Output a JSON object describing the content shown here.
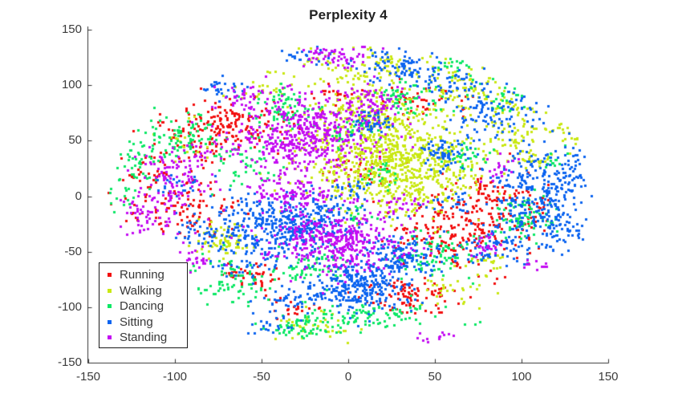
{
  "colors": {
    "background": "#ffffff",
    "axis": "#333333",
    "title_text": "#212121",
    "tick_text": "#3b3b3b",
    "legend_border": "#1a1a1a"
  },
  "chart_data": {
    "type": "scatter",
    "title": "Perplexity 4",
    "xlabel": "",
    "ylabel": "",
    "xlim": [
      -150,
      150
    ],
    "ylim": [
      -150,
      150
    ],
    "x_ticks": [
      -150,
      -100,
      -50,
      0,
      50,
      100,
      150
    ],
    "y_ticks": [
      -150,
      -100,
      -50,
      0,
      50,
      100,
      150
    ],
    "grid": false,
    "box": false,
    "legend_position": "bottom-left-inside",
    "marker": "dot",
    "marker_px": 3,
    "series": [
      {
        "name": "Running",
        "color": "#F20F0F",
        "clusters": [
          [
            -67,
            66,
            15,
            11,
            150
          ],
          [
            -90,
            45,
            16,
            13,
            60
          ],
          [
            -95,
            -12,
            19,
            12,
            100
          ],
          [
            -58,
            -72,
            9,
            7,
            45
          ],
          [
            5,
            25,
            13,
            9,
            35
          ],
          [
            -5,
            93,
            8,
            6,
            18
          ],
          [
            45,
            85,
            13,
            8,
            45
          ],
          [
            63,
            -30,
            19,
            18,
            230
          ],
          [
            38,
            -88,
            12,
            9,
            90
          ],
          [
            95,
            -15,
            11,
            16,
            55
          ],
          [
            80,
            6,
            7,
            5,
            25
          ],
          [
            -120,
            20,
            8,
            10,
            25
          ],
          [
            -30,
            -100,
            8,
            6,
            20
          ]
        ]
      },
      {
        "name": "Walking",
        "color": "#C9E813",
        "clusters": [
          [
            27,
            30,
            25,
            24,
            850
          ],
          [
            10,
            75,
            14,
            11,
            140
          ],
          [
            15,
            115,
            22,
            10,
            110
          ],
          [
            -45,
            100,
            12,
            9,
            25
          ],
          [
            65,
            95,
            12,
            9,
            70
          ],
          [
            95,
            55,
            9,
            8,
            45
          ],
          [
            106,
            34,
            6,
            5,
            22
          ],
          [
            -70,
            -40,
            8,
            7,
            70
          ],
          [
            -18,
            -118,
            11,
            6,
            40
          ],
          [
            62,
            -85,
            12,
            8,
            30
          ],
          [
            -95,
            50,
            10,
            10,
            15
          ],
          [
            80,
            -60,
            8,
            6,
            20
          ],
          [
            130,
            60,
            6,
            8,
            18
          ],
          [
            95,
            78,
            7,
            6,
            25
          ]
        ]
      },
      {
        "name": "Dancing",
        "color": "#0CE865",
        "clusters": [
          [
            -100,
            55,
            13,
            11,
            90
          ],
          [
            -122,
            28,
            7,
            9,
            35
          ],
          [
            -38,
            76,
            9,
            11,
            75
          ],
          [
            -62,
            32,
            11,
            11,
            50
          ],
          [
            35,
            88,
            11,
            9,
            65
          ],
          [
            0,
            58,
            9,
            7,
            35
          ],
          [
            20,
            20,
            7,
            6,
            25
          ],
          [
            68,
            35,
            7,
            7,
            30
          ],
          [
            10,
            -108,
            24,
            7,
            115
          ],
          [
            -65,
            -75,
            14,
            11,
            80
          ],
          [
            -22,
            -62,
            11,
            9,
            60
          ],
          [
            50,
            -55,
            14,
            11,
            90
          ],
          [
            100,
            -20,
            11,
            11,
            80
          ],
          [
            -32,
            -120,
            9,
            5,
            45
          ],
          [
            -130,
            2,
            5,
            7,
            15
          ],
          [
            90,
            90,
            7,
            7,
            25
          ],
          [
            120,
            35,
            5,
            6,
            15
          ],
          [
            62,
            118,
            6,
            5,
            18
          ],
          [
            5,
            -15,
            6,
            5,
            18
          ]
        ]
      },
      {
        "name": "Sitting",
        "color": "#0C64F0",
        "clusters": [
          [
            -35,
            -25,
            22,
            13,
            450
          ],
          [
            5,
            -82,
            13,
            12,
            290
          ],
          [
            30,
            -55,
            12,
            10,
            140
          ],
          [
            108,
            3,
            13,
            20,
            270
          ],
          [
            85,
            -45,
            10,
            9,
            80
          ],
          [
            30,
            117,
            13,
            7,
            85
          ],
          [
            85,
            75,
            14,
            11,
            100
          ],
          [
            60,
            100,
            10,
            7,
            50
          ],
          [
            -72,
            98,
            6,
            5,
            30
          ],
          [
            -25,
            128,
            8,
            4,
            25
          ],
          [
            13,
            67,
            6,
            6,
            55
          ],
          [
            55,
            38,
            8,
            7,
            65
          ],
          [
            -55,
            -60,
            11,
            9,
            50
          ],
          [
            -35,
            -95,
            10,
            8,
            45
          ],
          [
            -85,
            -32,
            9,
            7,
            35
          ],
          [
            120,
            -28,
            8,
            11,
            60
          ],
          [
            0,
            5,
            9,
            5,
            25
          ],
          [
            -98,
            8,
            7,
            7,
            25
          ],
          [
            60,
            -5,
            7,
            5,
            25
          ],
          [
            130,
            25,
            6,
            10,
            30
          ],
          [
            -45,
            -118,
            6,
            4,
            18
          ]
        ]
      },
      {
        "name": "Standing",
        "color": "#C40DF2",
        "clusters": [
          [
            -25,
            55,
            21,
            19,
            520
          ],
          [
            -8,
            128,
            10,
            6,
            55
          ],
          [
            15,
            85,
            10,
            8,
            75
          ],
          [
            -100,
            20,
            11,
            14,
            115
          ],
          [
            -115,
            -18,
            9,
            9,
            55
          ],
          [
            -8,
            -40,
            19,
            13,
            380
          ],
          [
            -28,
            2,
            14,
            7,
            110
          ],
          [
            -60,
            90,
            8,
            6,
            30
          ],
          [
            -88,
            -55,
            7,
            6,
            25
          ],
          [
            30,
            -8,
            8,
            5,
            25
          ],
          [
            80,
            -44,
            6,
            5,
            25
          ],
          [
            86,
            25,
            5,
            8,
            22
          ],
          [
            50,
            -128,
            5,
            4,
            12
          ],
          [
            108,
            -62,
            5,
            4,
            10
          ]
        ]
      }
    ]
  }
}
